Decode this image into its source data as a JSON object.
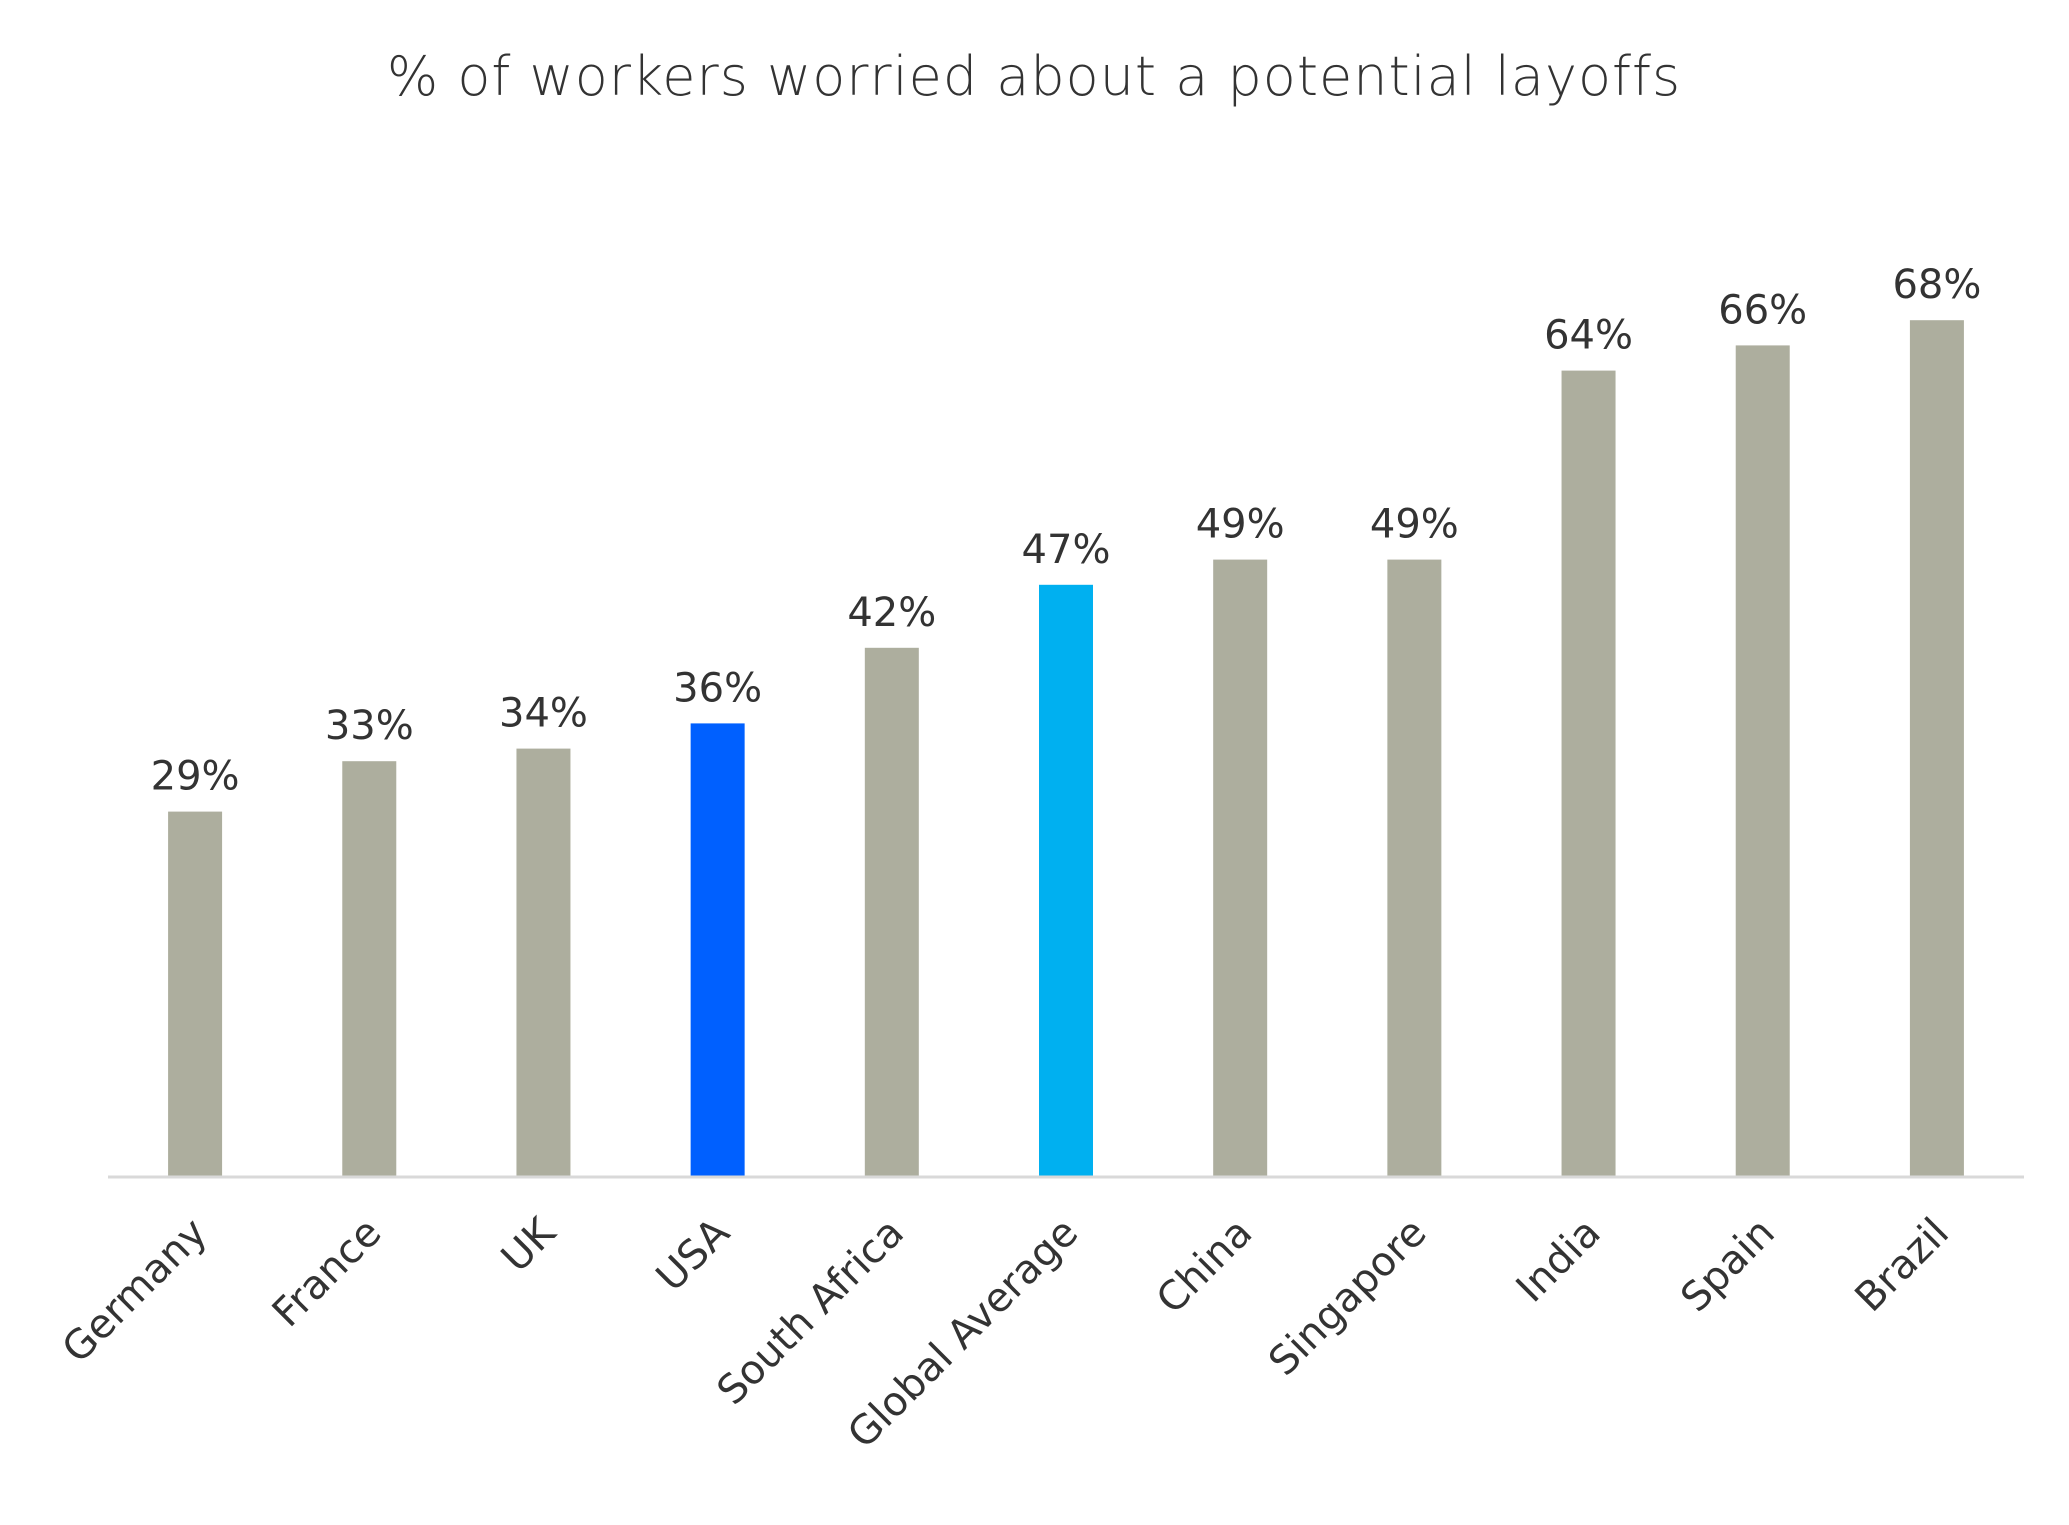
{
  "chart_data": {
    "type": "bar",
    "title": "% of workers worried about a potential layoffs",
    "xlabel": "",
    "ylabel": "",
    "categories": [
      "Germany",
      "France",
      "UK",
      "USA",
      "South Africa",
      "Global Average",
      "China",
      "Singapore",
      "India",
      "Spain",
      "Brazil"
    ],
    "values": [
      29,
      33,
      34,
      36,
      42,
      47,
      49,
      49,
      64,
      66,
      68
    ],
    "data_labels": [
      "29%",
      "33%",
      "34%",
      "36%",
      "42%",
      "47%",
      "49%",
      "49%",
      "64%",
      "66%",
      "68%"
    ],
    "ylim": [
      0,
      75
    ],
    "grid": false,
    "legend": "none",
    "colors": {
      "default": "#ADAE9E",
      "USA": "#0060FF",
      "Global Average": "#00B0F0",
      "axis": "#D9D9D9",
      "text": "#333333"
    }
  }
}
